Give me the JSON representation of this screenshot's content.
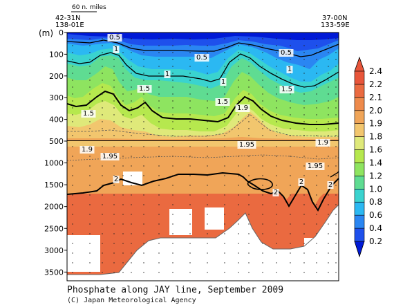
{
  "chart_data": {
    "type": "contour",
    "title": "Phosphate along JAY line, September 2009",
    "credit": "(C) Japan Meteorological Agency",
    "ylabel": "(m)",
    "scale_bar_label": "60 n. miles",
    "start_station": {
      "lat": "42-31N",
      "lon": "138-01E"
    },
    "end_station": {
      "lat": "37-00N",
      "lon": "133-59E"
    },
    "upper_y_ticks": [
      0,
      100,
      200,
      300,
      400,
      500
    ],
    "lower_y_ticks": [
      1000,
      1500,
      2000,
      2500,
      3000,
      3500
    ],
    "ylim": [
      0,
      3700
    ],
    "depth_break": 500,
    "colorbar": {
      "levels": [
        0.2,
        0.4,
        0.6,
        0.8,
        1.0,
        1.2,
        1.4,
        1.6,
        1.8,
        1.9,
        2.0,
        2.1,
        2.2,
        2.4
      ],
      "colors": [
        "#0019d6",
        "#1e50ec",
        "#2a86f2",
        "#2bb8f2",
        "#3ad3cf",
        "#5fdc92",
        "#8ee460",
        "#b6e84e",
        "#dfe97a",
        "#f2c66e",
        "#f0a558",
        "#ee8a4b",
        "#ea6a40",
        "#e8553a"
      ]
    },
    "contour_labels": [
      "0.5",
      "1",
      "0.5",
      "0.5",
      "1",
      "1",
      "1",
      "1.5",
      "1.5",
      "1.5",
      "1.5",
      "1.9",
      "1.9",
      "1.95",
      "1.95",
      "1.95",
      "1.9",
      "2",
      "2",
      "2",
      "2"
    ],
    "grid": false,
    "legend": "right"
  }
}
